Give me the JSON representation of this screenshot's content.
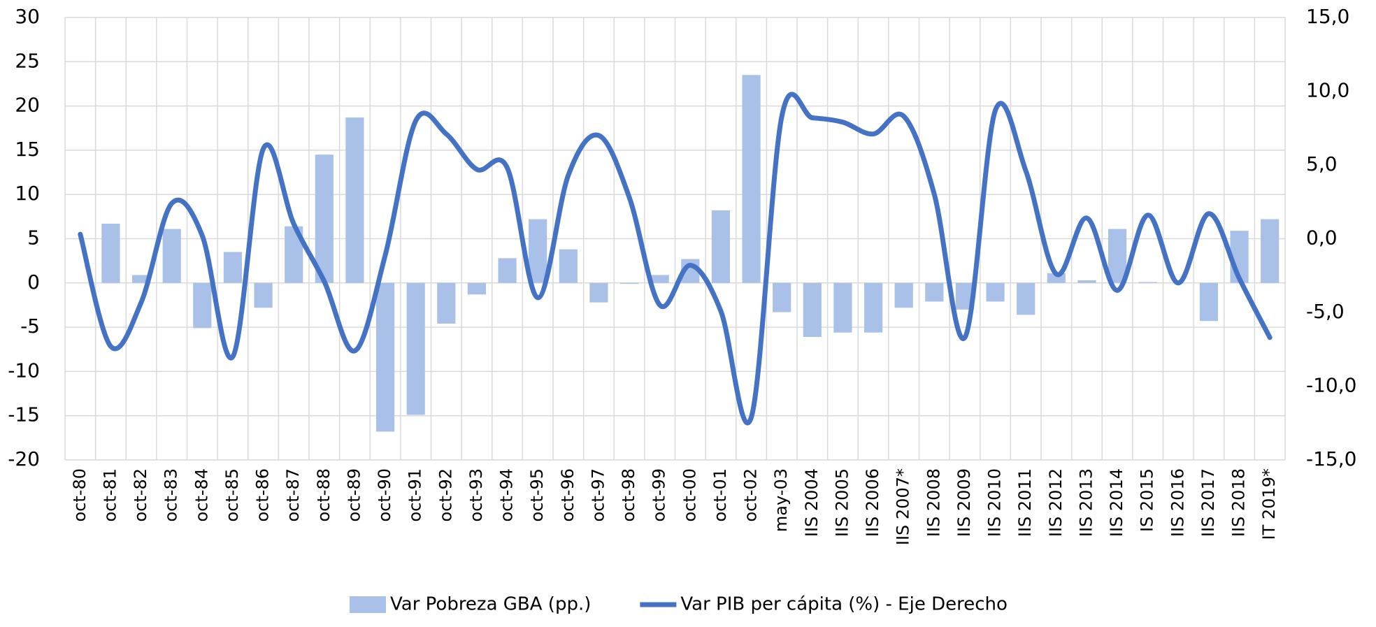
{
  "chart_data": {
    "type": "bar-line",
    "categories": [
      "oct-80",
      "oct-81",
      "oct-82",
      "oct-83",
      "oct-84",
      "oct-85",
      "oct-86",
      "oct-87",
      "oct-88",
      "oct-89",
      "oct-90",
      "oct-91",
      "oct-92",
      "oct-93",
      "oct-94",
      "oct-95",
      "oct-96",
      "oct-97",
      "oct-98",
      "oct-99",
      "oct-00",
      "oct-01",
      "oct-02",
      "may-03",
      "IIS 2004",
      "IIS 2005",
      "IIS 2006",
      "IIS 2007*",
      "IIS 2008",
      "IIS 2009",
      "IIS 2010",
      "IIS 2011",
      "IIS 2012",
      "IIS 2013",
      "IIS 2014",
      "IS 2015",
      "IIS 2016",
      "IIS 2017",
      "IIS 2018",
      "IT 2019*"
    ],
    "series": [
      {
        "name": "Var Pobreza GBA (pp.)",
        "type": "bar",
        "color": "#a9c0e8",
        "axis": "y",
        "values": [
          0,
          6.7,
          0.9,
          6.1,
          -5.1,
          3.5,
          -2.8,
          6.4,
          14.5,
          18.7,
          -16.8,
          -14.9,
          -4.6,
          -1.3,
          2.8,
          7.2,
          3.8,
          -2.2,
          -0.1,
          0.9,
          2.7,
          8.2,
          23.5,
          -3.3,
          -6.1,
          -5.6,
          -5.6,
          -2.8,
          -2.1,
          -3.0,
          -2.1,
          -3.6,
          1.1,
          0.3,
          6.1,
          0.1,
          0,
          -4.3,
          5.9,
          7.2
        ]
      },
      {
        "name": "Var PIB per cápita (%) - Eje Derecho",
        "type": "line",
        "color": "#4472c4",
        "axis": "y2",
        "values": [
          0.3,
          -7.3,
          -4.3,
          2.4,
          0.2,
          -8.0,
          6.1,
          1.0,
          -2.9,
          -7.6,
          -1.1,
          8.0,
          7.1,
          4.7,
          4.8,
          -4.0,
          4.3,
          7.0,
          2.8,
          -4.5,
          -1.8,
          -4.9,
          -12.1,
          8.3,
          8.2,
          7.9,
          7.1,
          8.3,
          3.0,
          -6.7,
          8.7,
          4.6,
          -2.4,
          1.4,
          -3.5,
          1.6,
          -3.0,
          1.7,
          -2.7,
          -6.7
        ]
      }
    ],
    "ylim": [
      -20,
      30
    ],
    "yticks": [
      -20,
      -15,
      -10,
      -5,
      0,
      5,
      10,
      15,
      20,
      25,
      30
    ],
    "y2lim": [
      -15,
      15
    ],
    "y2ticks": [
      {
        "value": -15,
        "label": "-15,0"
      },
      {
        "value": -10,
        "label": "-10,0"
      },
      {
        "value": -5,
        "label": "-5,0"
      },
      {
        "value": 0,
        "label": "0,0"
      },
      {
        "value": 5,
        "label": "5,0"
      },
      {
        "value": 10,
        "label": "10,0"
      },
      {
        "value": 15,
        "label": "15,0"
      }
    ],
    "grid": true,
    "legend": "bottom"
  }
}
